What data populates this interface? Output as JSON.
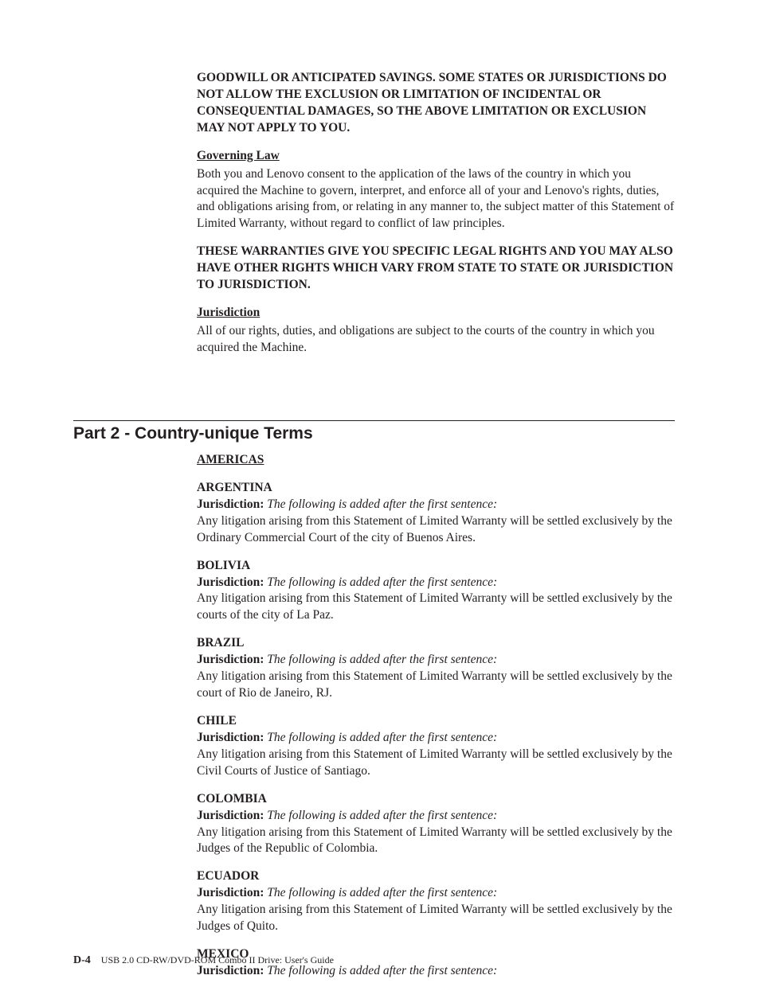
{
  "top_block": {
    "caps_para": "GOODWILL OR ANTICIPATED SAVINGS. SOME STATES OR JURISDICTIONS DO NOT ALLOW THE EXCLUSION OR LIMITATION OF INCIDENTAL OR CONSEQUENTIAL DAMAGES, SO THE ABOVE LIMITATION OR EXCLUSION MAY NOT APPLY TO YOU.",
    "gov_law_head": "Governing Law",
    "gov_law_body": "Both you and Lenovo consent to the application of the laws of the country in which you acquired the Machine to govern, interpret, and enforce all of your and Lenovo's rights, duties, and obligations arising from, or relating in any manner to, the subject matter of this Statement of Limited Warranty, without regard to conflict of law principles.",
    "rights_caps": "THESE WARRANTIES GIVE YOU SPECIFIC LEGAL RIGHTS AND YOU MAY ALSO HAVE OTHER RIGHTS WHICH VARY FROM STATE TO STATE OR JURISDICTION TO JURISDICTION.",
    "jur_head": "Jurisdiction",
    "jur_body": "All of our rights, duties, and obligations are subject to the courts of the country in which you acquired the Machine."
  },
  "part2": {
    "title": "Part 2 - Country-unique Terms",
    "americas": "AMERICAS",
    "jur_label": "Jurisdiction:",
    "added_note": "The following is added after the first sentence:",
    "countries": {
      "argentina": {
        "head": "ARGENTINA",
        "body": "Any litigation arising from this Statement of Limited Warranty will be settled exclusively by the Ordinary Commercial Court of the city of Buenos Aires."
      },
      "bolivia": {
        "head": "BOLIVIA",
        "body": "Any litigation arising from this Statement of Limited Warranty will be settled exclusively by the courts of the city of La Paz."
      },
      "brazil": {
        "head": "BRAZIL",
        "body": "Any litigation arising from this Statement of Limited Warranty will be settled exclusively by the court of Rio de Janeiro, RJ."
      },
      "chile": {
        "head": "CHILE",
        "body": "Any litigation arising from this Statement of Limited Warranty will be settled exclusively by the Civil Courts of Justice of Santiago."
      },
      "colombia": {
        "head": "COLOMBIA",
        "body": "Any litigation arising from this Statement of Limited Warranty will be settled exclusively by the Judges of the Republic of Colombia."
      },
      "ecuador": {
        "head": "ECUADOR",
        "body": "Any litigation arising from this Statement of Limited Warranty will be settled exclusively by the Judges of Quito."
      },
      "mexico": {
        "head": "MEXICO"
      }
    }
  },
  "footer": {
    "page": "D-4",
    "title": "USB 2.0 CD-RW/DVD-ROM Combo II Drive: User's Guide"
  }
}
